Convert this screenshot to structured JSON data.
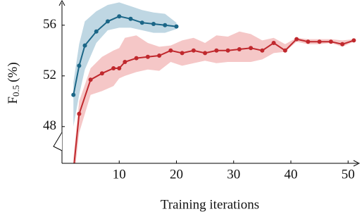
{
  "chart_data": {
    "type": "line",
    "x_label": "Training iterations",
    "y_label": "F",
    "y_label_sub": "0.5",
    "y_label_unit": "(%)",
    "xlim": [
      0,
      52
    ],
    "ylim": [
      45.1,
      57.8
    ],
    "xticks": [
      10,
      20,
      30,
      40,
      50
    ],
    "yticks": [
      48,
      52,
      56
    ],
    "series": [
      {
        "color": "#1b6687",
        "band_color": "#a9c9da",
        "x": [
          2,
          3,
          4,
          6,
          8,
          10,
          12,
          14,
          16,
          18,
          20
        ],
        "values": [
          50.5,
          52.8,
          54.4,
          55.5,
          56.3,
          56.7,
          56.5,
          56.2,
          56.1,
          56.0,
          55.9
        ],
        "upper": [
          51.5,
          54.5,
          56.3,
          57.1,
          57.6,
          57.8,
          57.5,
          57.2,
          57.0,
          56.9,
          56.2
        ],
        "lower": [
          48.0,
          50.5,
          52.5,
          54.6,
          55.6,
          55.8,
          55.8,
          55.6,
          55.4,
          55.4,
          55.7
        ]
      },
      {
        "color": "#c0282d",
        "band_color": "#f2b4b4",
        "x": [
          2,
          3,
          5,
          7,
          9,
          10,
          11,
          13,
          15,
          17,
          19,
          21,
          23,
          25,
          27,
          29,
          31,
          33,
          35,
          37,
          39,
          41,
          43,
          45,
          47,
          49,
          51
        ],
        "values": [
          44.5,
          49.0,
          51.7,
          52.2,
          52.6,
          52.6,
          53.1,
          53.4,
          53.5,
          53.6,
          54.0,
          53.8,
          54.0,
          53.8,
          54.0,
          54.0,
          54.1,
          54.2,
          54.0,
          54.6,
          54.0,
          54.9,
          54.7,
          54.7,
          54.7,
          54.5,
          54.8
        ],
        "upper": [
          45.5,
          50.0,
          52.6,
          53.5,
          54.0,
          54.2,
          55.0,
          55.2,
          54.6,
          54.3,
          54.4,
          54.8,
          55.0,
          54.6,
          55.2,
          55.1,
          55.5,
          55.3,
          54.8,
          55.0,
          54.5,
          55.0,
          54.9,
          54.9,
          54.9,
          54.8,
          54.9
        ],
        "lower": [
          43.5,
          47.5,
          50.5,
          50.8,
          51.2,
          51.8,
          52.0,
          52.3,
          52.5,
          52.4,
          53.1,
          52.8,
          53.0,
          53.2,
          53.0,
          53.1,
          53.1,
          53.1,
          53.3,
          53.8,
          53.9,
          54.7,
          54.5,
          54.5,
          54.6,
          54.3,
          54.7
        ]
      }
    ]
  }
}
